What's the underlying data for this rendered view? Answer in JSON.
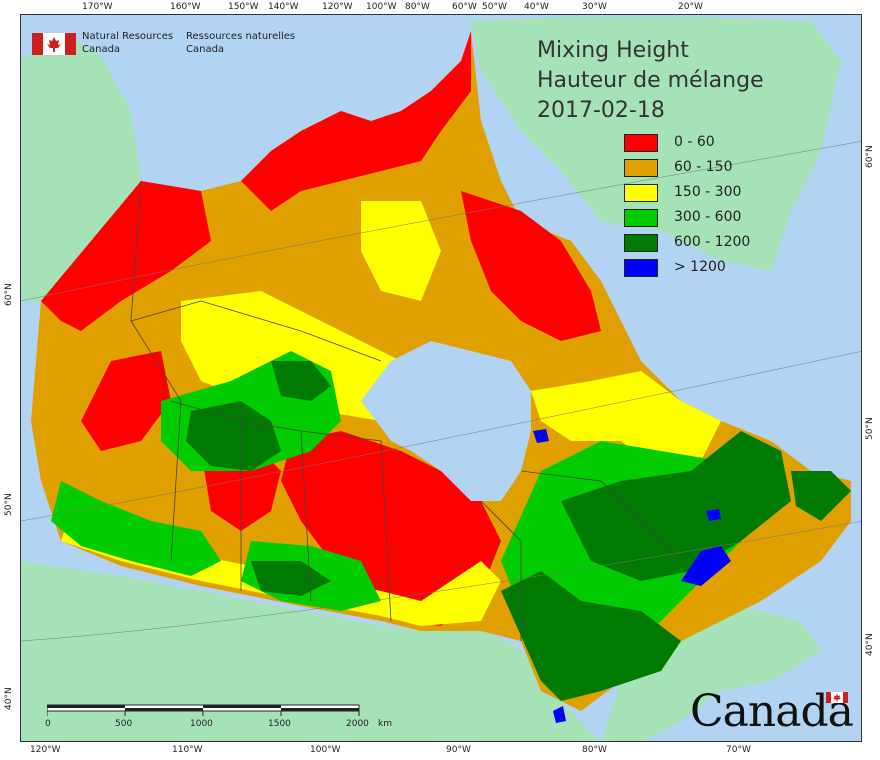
{
  "header": {
    "org_en_1": "Natural Resources",
    "org_en_2": "Canada",
    "org_fr_1": "Ressources naturelles",
    "org_fr_2": "Canada"
  },
  "title": {
    "line1": "Mixing Height",
    "line2": "Hauteur de mélange",
    "date": "2017-02-18"
  },
  "legend": [
    {
      "label": "0 - 60",
      "color": "#ff0000"
    },
    {
      "label": "60 - 150",
      "color": "#e0a000"
    },
    {
      "label": "150 - 300",
      "color": "#ffff00"
    },
    {
      "label": "300 - 600",
      "color": "#00cc00"
    },
    {
      "label": "600 - 1200",
      "color": "#007a00"
    },
    {
      "label": "> 1200",
      "color": "#0000ff"
    }
  ],
  "colors": {
    "ocean": "#b3d3f2",
    "foreign_land": "#a6e2b8",
    "border": "#444444"
  },
  "axes": {
    "top_lon": [
      "170°W",
      "160°W",
      "150°W",
      "140°W",
      "120°W",
      "100°W",
      "80°W",
      "60°W",
      "50°W",
      "40°W",
      "30°W",
      "20°W"
    ],
    "bottom_lon": [
      "120°W",
      "110°W",
      "100°W",
      "90°W",
      "80°W",
      "70°W"
    ],
    "left_lat": [
      "60°N",
      "50°N",
      "40°N"
    ],
    "right_lat": [
      "60°N",
      "50°N",
      "40°N"
    ]
  },
  "scale_bar": {
    "ticks": [
      "0",
      "500",
      "1000",
      "1500",
      "2000"
    ],
    "unit": "km"
  },
  "wordmark": "Canada"
}
